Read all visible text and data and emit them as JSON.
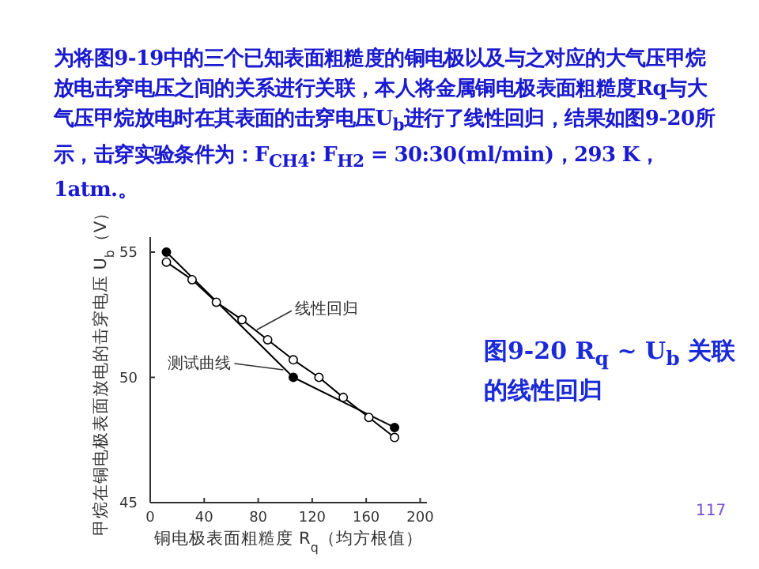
{
  "chart_data": {
    "type": "line",
    "title": "为将图9-19中的三个已知表面粗糙度的铜电极以及与之对应的大气压甲烷放电击穿电压之间的关系进行关联，本人将金属铜电极表面粗糙度Rq与大气压甲烷放电时在其表面的击穿电压U$_{b}$进行了线性回归，结果如图9-20所示，击穿实验条件为：F$_{CH4}$: F$_{H2}$ = 30:30(ml/min)，293  K，1atm.。",
    "xlabel": "铜电极表面粗糙度 R$_{q}$（均方根值）",
    "ylabel": "甲烷在铜电极表面放电的击穿电压 U$_{b}$（V）",
    "xlim": [
      0,
      205
    ],
    "xticks": [
      0,
      40,
      80,
      120,
      160,
      200
    ],
    "ylim": [
      45,
      55.6
    ],
    "yticks": [
      45,
      50,
      55
    ],
    "grid": false,
    "marker": "circle",
    "line_style": "solid",
    "series": [
      {
        "color": "#000000",
        "x": [
          12,
          106,
          181
        ],
        "values": [
          55.0,
          50.0,
          48.0
        ]
      },
      {
        "color": "#000000",
        "x": [
          12,
          31,
          49,
          68,
          87,
          106,
          125,
          143,
          162,
          181
        ],
        "values": [
          54.6,
          53.9,
          53.0,
          52.3,
          51.5,
          50.7,
          50.0,
          49.2,
          48.4,
          47.6
        ]
      }
    ],
    "annotations": [
      {
        "text": "线性回归",
        "x": 79,
        "y": 51.9
      },
      {
        "text": "测试曲线",
        "x": 101,
        "y": 50.3
      },
      "图9-20 R$_{q}$ ~ U$_{b}$ 关联的线性回归",
      "117"
    ]
  }
}
